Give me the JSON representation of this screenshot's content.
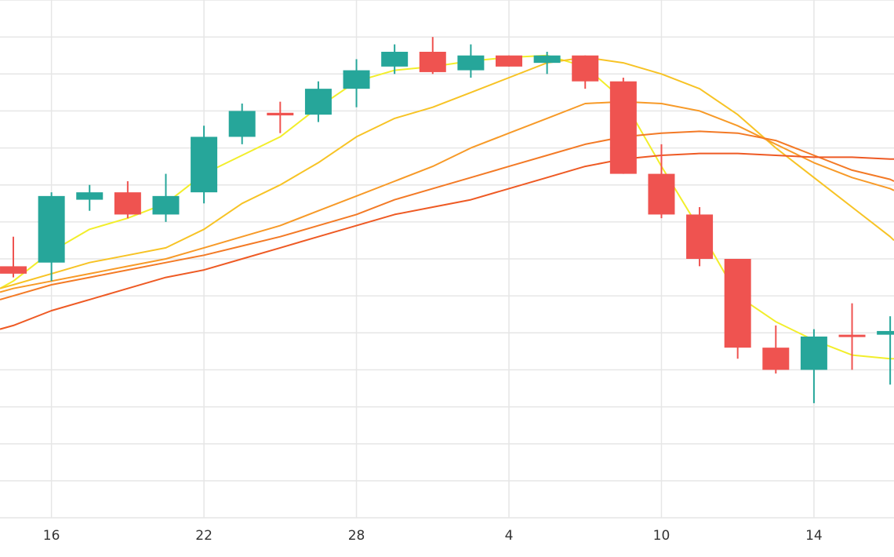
{
  "chart_data": {
    "type": "candlestick",
    "x_ticks": [
      {
        "index": 1,
        "label": "16"
      },
      {
        "index": 5,
        "label": "22"
      },
      {
        "index": 9,
        "label": "28"
      },
      {
        "index": 13,
        "label": "4"
      },
      {
        "index": 17,
        "label": "10"
      },
      {
        "index": 21,
        "label": "14"
      }
    ],
    "x_range": [
      -0.35,
      23.1
    ],
    "y_range": [
      10,
      24
    ],
    "y_gridlines": [
      10,
      11,
      12,
      13,
      14,
      15,
      16,
      17,
      18,
      19,
      20,
      21,
      22,
      23,
      24
    ],
    "colors": {
      "up": "#26a69a",
      "down": "#ef5350",
      "grid": "#e6e6e6",
      "ma": [
        "#f2ee2b",
        "#f7c325",
        "#f79a28",
        "#f37a26",
        "#ee5a24"
      ]
    },
    "candles": [
      {
        "o": 16.8,
        "h": 17.6,
        "l": 16.5,
        "c": 16.6
      },
      {
        "o": 16.9,
        "h": 18.8,
        "l": 16.4,
        "c": 18.7
      },
      {
        "o": 18.6,
        "h": 19.0,
        "l": 18.3,
        "c": 18.8
      },
      {
        "o": 18.8,
        "h": 19.1,
        "l": 18.1,
        "c": 18.2
      },
      {
        "o": 18.2,
        "h": 19.3,
        "l": 18.0,
        "c": 18.7
      },
      {
        "o": 18.8,
        "h": 20.6,
        "l": 18.5,
        "c": 20.3
      },
      {
        "o": 20.3,
        "h": 21.2,
        "l": 20.1,
        "c": 21.0
      },
      {
        "o": 20.95,
        "h": 21.25,
        "l": 20.4,
        "c": 20.88
      },
      {
        "o": 20.9,
        "h": 21.8,
        "l": 20.7,
        "c": 21.6
      },
      {
        "o": 21.6,
        "h": 22.4,
        "l": 21.1,
        "c": 22.1
      },
      {
        "o": 22.2,
        "h": 22.8,
        "l": 22.0,
        "c": 22.6
      },
      {
        "o": 22.6,
        "h": 23.0,
        "l": 22.0,
        "c": 22.05
      },
      {
        "o": 22.1,
        "h": 22.8,
        "l": 21.9,
        "c": 22.5
      },
      {
        "o": 22.5,
        "h": 22.5,
        "l": 22.2,
        "c": 22.2
      },
      {
        "o": 22.3,
        "h": 22.6,
        "l": 22.0,
        "c": 22.5
      },
      {
        "o": 22.5,
        "h": 22.5,
        "l": 21.6,
        "c": 21.8
      },
      {
        "o": 21.8,
        "h": 21.9,
        "l": 19.3,
        "c": 19.3
      },
      {
        "o": 19.3,
        "h": 20.1,
        "l": 18.1,
        "c": 18.2
      },
      {
        "o": 18.2,
        "h": 18.4,
        "l": 16.8,
        "c": 17.0
      },
      {
        "o": 17.0,
        "h": 17.0,
        "l": 14.3,
        "c": 14.6
      },
      {
        "o": 14.6,
        "h": 15.2,
        "l": 13.9,
        "c": 14.0
      },
      {
        "o": 14.0,
        "h": 15.1,
        "l": 13.1,
        "c": 14.9
      },
      {
        "o": 14.95,
        "h": 15.8,
        "l": 14.0,
        "c": 14.92
      },
      {
        "o": 14.95,
        "h": 15.45,
        "l": 13.6,
        "c": 15.05
      }
    ],
    "moving_averages": [
      {
        "color": "#f2ee2b",
        "points": [
          [
            -0.35,
            16.2
          ],
          [
            0,
            16.4
          ],
          [
            0.5,
            16.8
          ],
          [
            1,
            17.2
          ],
          [
            1.5,
            17.5
          ],
          [
            2,
            17.8
          ],
          [
            3,
            18.1
          ],
          [
            4,
            18.5
          ],
          [
            5,
            19.3
          ],
          [
            6,
            19.8
          ],
          [
            7,
            20.3
          ],
          [
            8,
            21.1
          ],
          [
            9,
            21.8
          ],
          [
            10,
            22.1
          ],
          [
            11,
            22.2
          ],
          [
            12,
            22.35
          ],
          [
            13,
            22.45
          ],
          [
            14,
            22.5
          ],
          [
            15,
            22.2
          ],
          [
            16,
            21.3
          ],
          [
            17,
            19.5
          ],
          [
            18,
            17.8
          ],
          [
            19,
            16.0
          ],
          [
            20,
            15.3
          ],
          [
            21,
            14.8
          ],
          [
            22,
            14.4
          ],
          [
            23,
            14.3
          ],
          [
            23.1,
            14.3
          ]
        ]
      },
      {
        "color": "#f7c325",
        "points": [
          [
            -0.35,
            16.2
          ],
          [
            0,
            16.3
          ],
          [
            1,
            16.6
          ],
          [
            2,
            16.9
          ],
          [
            3,
            17.1
          ],
          [
            4,
            17.3
          ],
          [
            5,
            17.8
          ],
          [
            6,
            18.5
          ],
          [
            7,
            19.0
          ],
          [
            8,
            19.6
          ],
          [
            9,
            20.3
          ],
          [
            10,
            20.8
          ],
          [
            11,
            21.1
          ],
          [
            12,
            21.5
          ],
          [
            13,
            21.9
          ],
          [
            14,
            22.3
          ],
          [
            15,
            22.45
          ],
          [
            16,
            22.3
          ],
          [
            17,
            22.0
          ],
          [
            18,
            21.6
          ],
          [
            19,
            20.9
          ],
          [
            20,
            20.0
          ],
          [
            21,
            19.2
          ],
          [
            22,
            18.4
          ],
          [
            23,
            17.6
          ],
          [
            23.1,
            17.5
          ]
        ]
      },
      {
        "color": "#f79a28",
        "points": [
          [
            -0.35,
            16.1
          ],
          [
            0,
            16.2
          ],
          [
            1,
            16.4
          ],
          [
            2,
            16.6
          ],
          [
            3,
            16.8
          ],
          [
            4,
            17.0
          ],
          [
            5,
            17.3
          ],
          [
            6,
            17.6
          ],
          [
            7,
            17.9
          ],
          [
            8,
            18.3
          ],
          [
            9,
            18.7
          ],
          [
            10,
            19.1
          ],
          [
            11,
            19.5
          ],
          [
            12,
            20.0
          ],
          [
            13,
            20.4
          ],
          [
            14,
            20.8
          ],
          [
            15,
            21.2
          ],
          [
            16,
            21.25
          ],
          [
            17,
            21.2
          ],
          [
            18,
            21.0
          ],
          [
            19,
            20.6
          ],
          [
            20,
            20.1
          ],
          [
            21,
            19.6
          ],
          [
            22,
            19.2
          ],
          [
            23,
            18.9
          ],
          [
            23.1,
            18.85
          ]
        ]
      },
      {
        "color": "#f37a26",
        "points": [
          [
            -0.35,
            15.9
          ],
          [
            0,
            16.0
          ],
          [
            1,
            16.3
          ],
          [
            2,
            16.5
          ],
          [
            3,
            16.7
          ],
          [
            4,
            16.9
          ],
          [
            5,
            17.1
          ],
          [
            6,
            17.35
          ],
          [
            7,
            17.6
          ],
          [
            8,
            17.9
          ],
          [
            9,
            18.2
          ],
          [
            10,
            18.6
          ],
          [
            11,
            18.9
          ],
          [
            12,
            19.2
          ],
          [
            13,
            19.5
          ],
          [
            14,
            19.8
          ],
          [
            15,
            20.1
          ],
          [
            16,
            20.3
          ],
          [
            17,
            20.4
          ],
          [
            18,
            20.45
          ],
          [
            19,
            20.4
          ],
          [
            20,
            20.2
          ],
          [
            21,
            19.8
          ],
          [
            22,
            19.4
          ],
          [
            23,
            19.15
          ],
          [
            23.1,
            19.1
          ]
        ]
      },
      {
        "color": "#ee5a24",
        "points": [
          [
            -0.35,
            15.1
          ],
          [
            0,
            15.2
          ],
          [
            1,
            15.6
          ],
          [
            2,
            15.9
          ],
          [
            3,
            16.2
          ],
          [
            4,
            16.5
          ],
          [
            5,
            16.7
          ],
          [
            6,
            17.0
          ],
          [
            7,
            17.3
          ],
          [
            8,
            17.6
          ],
          [
            9,
            17.9
          ],
          [
            10,
            18.2
          ],
          [
            11,
            18.4
          ],
          [
            12,
            18.6
          ],
          [
            13,
            18.9
          ],
          [
            14,
            19.2
          ],
          [
            15,
            19.5
          ],
          [
            16,
            19.7
          ],
          [
            17,
            19.8
          ],
          [
            18,
            19.85
          ],
          [
            19,
            19.85
          ],
          [
            20,
            19.8
          ],
          [
            21,
            19.75
          ],
          [
            22,
            19.75
          ],
          [
            23,
            19.7
          ],
          [
            23.1,
            19.7
          ]
        ]
      }
    ]
  }
}
